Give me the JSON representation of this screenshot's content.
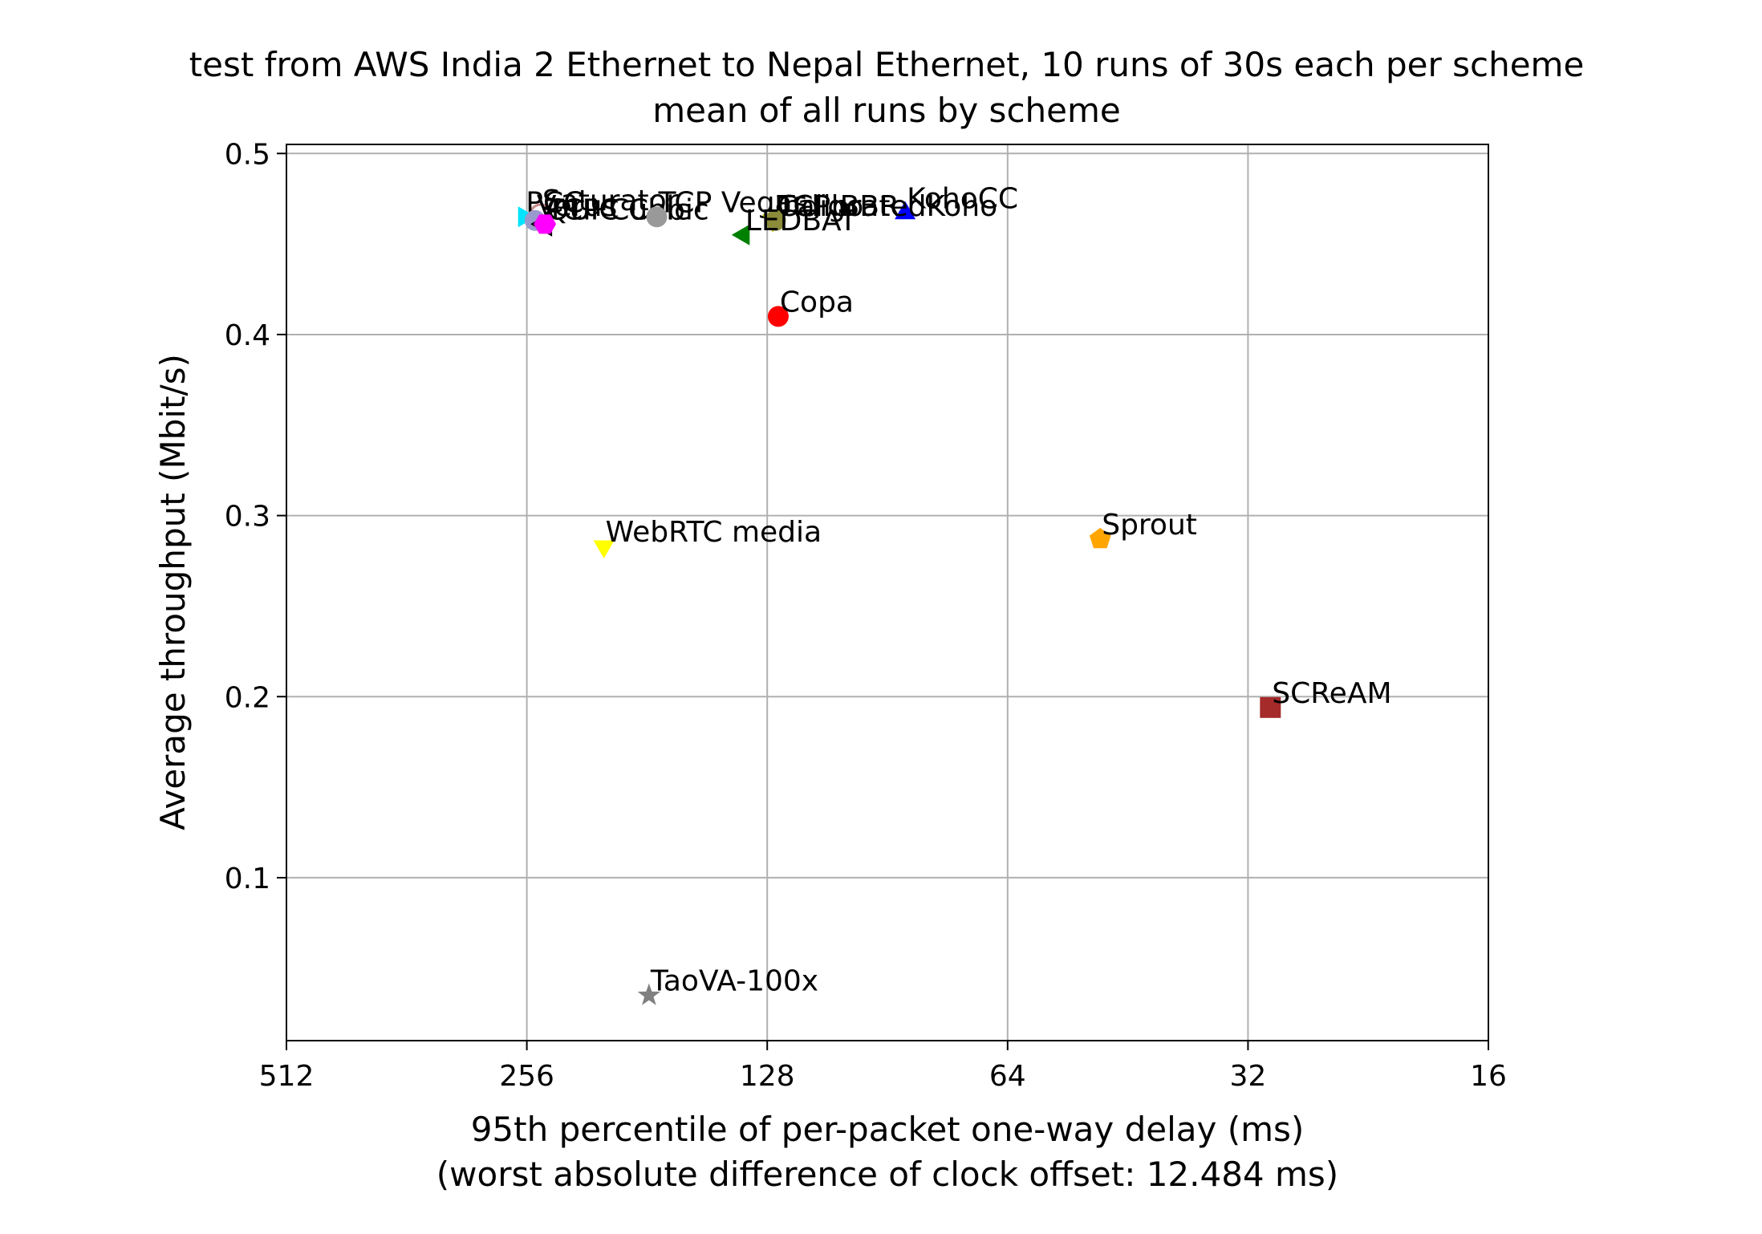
{
  "chart_data": {
    "type": "scatter",
    "title": "test from AWS India 2 Ethernet to Nepal Ethernet, 10 runs of 30s each per scheme",
    "subtitle": "mean of all runs by scheme",
    "xlabel": "95th percentile of per-packet one-way delay (ms)",
    "xlabel2": "(worst absolute difference of clock offset: 12.484 ms)",
    "ylabel": "Average throughput (Mbit/s)",
    "x_scale": "log2",
    "x_inverted": true,
    "xlim": [
      512,
      16
    ],
    "ylim": [
      0.01,
      0.505
    ],
    "x_ticks": [
      512,
      256,
      128,
      64,
      32,
      16
    ],
    "x_tick_labels": [
      "512",
      "256",
      "128",
      "64",
      "32",
      "16"
    ],
    "y_ticks": [
      0.1,
      0.2,
      0.3,
      0.4,
      0.5
    ],
    "y_tick_labels": [
      "0.1",
      "0.2",
      "0.3",
      "0.4",
      "0.5"
    ],
    "grid": true,
    "series": [
      {
        "name": "Saturator",
        "x": 246,
        "y": 0.466,
        "marker": "circle-open",
        "color": "#c98a8a"
      },
      {
        "name": "PCC",
        "x": 258,
        "y": 0.465,
        "marker": "triangle-right",
        "color": "#00e5ff"
      },
      {
        "name": "Verus",
        "x": 250,
        "y": 0.463,
        "marker": "circle",
        "color": "#9999cc"
      },
      {
        "name": "QUIC Cubic",
        "x": 243,
        "y": 0.461,
        "marker": "triangle-left-open",
        "color": "#000000"
      },
      {
        "name": "TCP Cubic",
        "x": 243,
        "y": 0.461,
        "marker": "hexagon",
        "color": "#ff00ff"
      },
      {
        "name": "TCP Vegas",
        "x": 176,
        "y": 0.465,
        "marker": "circle",
        "color": "#999999"
      },
      {
        "name": "Indigo",
        "x": 126,
        "y": 0.463,
        "marker": "triangle-down",
        "color": "#c8c800"
      },
      {
        "name": "TCP BBR",
        "x": 125,
        "y": 0.463,
        "marker": "circle",
        "color": "#8b8b3a"
      },
      {
        "name": "LEDBAT",
        "x": 137,
        "y": 0.455,
        "marker": "triangle-left",
        "color": "#008000"
      },
      {
        "name": "Copa",
        "x": 124,
        "y": 0.41,
        "marker": "circle",
        "color": "#ff0000"
      },
      {
        "name": "KohoCC",
        "x": 86,
        "y": 0.467,
        "marker": "triangle-up",
        "color": "#0000ff"
      },
      {
        "name": "CalibratedKoho",
        "x": 125,
        "y": 0.463,
        "marker": "none",
        "color": "#000000"
      },
      {
        "name": "WebRTC media",
        "x": 205,
        "y": 0.283,
        "marker": "triangle-down",
        "color": "#ffff00"
      },
      {
        "name": "Sprout",
        "x": 49,
        "y": 0.287,
        "marker": "pentagon",
        "color": "#ffa500"
      },
      {
        "name": "SCReAM",
        "x": 30,
        "y": 0.194,
        "marker": "square",
        "color": "#a52a2a"
      },
      {
        "name": "TaoVA-100x",
        "x": 180,
        "y": 0.035,
        "marker": "star",
        "color": "#808080"
      }
    ]
  }
}
